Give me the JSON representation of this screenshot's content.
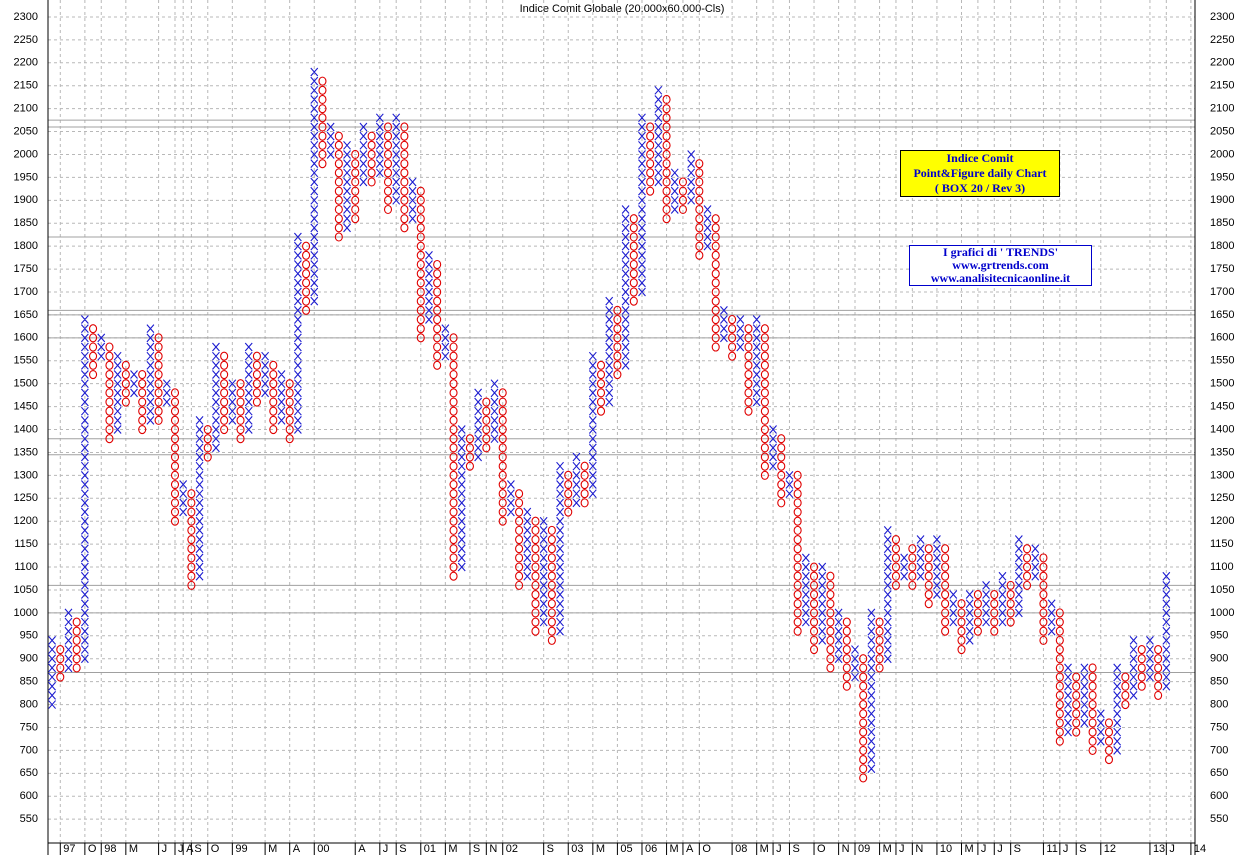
{
  "chart_data": {
    "type": "point-and-figure",
    "title": "Indice Comit Globale (20.000x60.000-Cls)",
    "box": 20,
    "x_color": "#1c1cd0",
    "o_color": "#e00000",
    "ylim": [
      498,
      2337
    ],
    "yticks": [
      550,
      600,
      650,
      700,
      750,
      800,
      850,
      900,
      950,
      1000,
      1050,
      1100,
      1150,
      1200,
      1250,
      1300,
      1350,
      1400,
      1450,
      1500,
      1550,
      1600,
      1650,
      1700,
      1750,
      1800,
      1850,
      1900,
      1950,
      2000,
      2050,
      2100,
      2150,
      2200,
      2250,
      2300
    ],
    "grid": true,
    "xlim": [
      -0.5,
      139.5
    ],
    "xticks": [
      {
        "value": 1,
        "label": "97"
      },
      {
        "value": 4,
        "label": "O"
      },
      {
        "value": 6,
        "label": "98"
      },
      {
        "value": 9,
        "label": "M"
      },
      {
        "value": 13,
        "label": "J"
      },
      {
        "value": 15,
        "label": "J"
      },
      {
        "value": 16,
        "label": "A"
      },
      {
        "value": 17,
        "label": "S"
      },
      {
        "value": 19,
        "label": "O"
      },
      {
        "value": 22,
        "label": "99"
      },
      {
        "value": 26,
        "label": "M"
      },
      {
        "value": 29,
        "label": "A"
      },
      {
        "value": 32,
        "label": "00"
      },
      {
        "value": 37,
        "label": "A"
      },
      {
        "value": 40,
        "label": "J"
      },
      {
        "value": 42,
        "label": "S"
      },
      {
        "value": 45,
        "label": "01"
      },
      {
        "value": 48,
        "label": "M"
      },
      {
        "value": 51,
        "label": "S"
      },
      {
        "value": 53,
        "label": "N"
      },
      {
        "value": 55,
        "label": "02"
      },
      {
        "value": 60,
        "label": "S"
      },
      {
        "value": 63,
        "label": "03"
      },
      {
        "value": 66,
        "label": "M"
      },
      {
        "value": 69,
        "label": "05"
      },
      {
        "value": 72,
        "label": "06"
      },
      {
        "value": 75,
        "label": "M"
      },
      {
        "value": 77,
        "label": "A"
      },
      {
        "value": 79,
        "label": "O"
      },
      {
        "value": 83,
        "label": "08"
      },
      {
        "value": 86,
        "label": "M"
      },
      {
        "value": 88,
        "label": "J"
      },
      {
        "value": 90,
        "label": "S"
      },
      {
        "value": 93,
        "label": "O"
      },
      {
        "value": 96,
        "label": "N"
      },
      {
        "value": 98,
        "label": "09"
      },
      {
        "value": 101,
        "label": "M"
      },
      {
        "value": 103,
        "label": "J"
      },
      {
        "value": 105,
        "label": "N"
      },
      {
        "value": 108,
        "label": "10"
      },
      {
        "value": 111,
        "label": "M"
      },
      {
        "value": 113,
        "label": "J"
      },
      {
        "value": 115,
        "label": "J"
      },
      {
        "value": 117,
        "label": "S"
      },
      {
        "value": 121,
        "label": "11"
      },
      {
        "value": 123,
        "label": "J"
      },
      {
        "value": 125,
        "label": "S"
      },
      {
        "value": 128,
        "label": "12"
      },
      {
        "value": 134,
        "label": "13"
      },
      {
        "value": 136,
        "label": "J"
      },
      {
        "value": 139,
        "label": "14"
      }
    ],
    "hlines": [
      2075,
      2060,
      1820,
      1660,
      1650,
      1600,
      1380,
      1345,
      1060,
      1000,
      870
    ],
    "columns": [
      [
        "X",
        800,
        940
      ],
      [
        "O",
        860,
        920
      ],
      [
        "X",
        880,
        1000
      ],
      [
        "O",
        880,
        980
      ],
      [
        "X",
        900,
        1640
      ],
      [
        "O",
        1520,
        1620
      ],
      [
        "X",
        1560,
        1600
      ],
      [
        "O",
        1380,
        1580
      ],
      [
        "X",
        1400,
        1560
      ],
      [
        "O",
        1460,
        1540
      ],
      [
        "X",
        1480,
        1520
      ],
      [
        "O",
        1400,
        1520
      ],
      [
        "X",
        1420,
        1620
      ],
      [
        "O",
        1420,
        1600
      ],
      [
        "X",
        1460,
        1500
      ],
      [
        "O",
        1200,
        1480
      ],
      [
        "X",
        1220,
        1280
      ],
      [
        "O",
        1060,
        1260
      ],
      [
        "X",
        1080,
        1420
      ],
      [
        "O",
        1340,
        1400
      ],
      [
        "X",
        1360,
        1580
      ],
      [
        "O",
        1400,
        1560
      ],
      [
        "X",
        1420,
        1500
      ],
      [
        "O",
        1380,
        1500
      ],
      [
        "X",
        1400,
        1580
      ],
      [
        "O",
        1460,
        1560
      ],
      [
        "X",
        1480,
        1560
      ],
      [
        "O",
        1400,
        1540
      ],
      [
        "X",
        1420,
        1520
      ],
      [
        "O",
        1380,
        1500
      ],
      [
        "X",
        1400,
        1820
      ],
      [
        "O",
        1660,
        1800
      ],
      [
        "X",
        1680,
        2180
      ],
      [
        "O",
        1980,
        2160
      ],
      [
        "X",
        2000,
        2060
      ],
      [
        "O",
        1820,
        2040
      ],
      [
        "X",
        1840,
        2020
      ],
      [
        "O",
        1860,
        2000
      ],
      [
        "X",
        1940,
        2060
      ],
      [
        "O",
        1940,
        2040
      ],
      [
        "X",
        1960,
        2080
      ],
      [
        "O",
        1880,
        2060
      ],
      [
        "X",
        1900,
        2080
      ],
      [
        "O",
        1840,
        2060
      ],
      [
        "X",
        1860,
        1940
      ],
      [
        "O",
        1600,
        1920
      ],
      [
        "X",
        1640,
        1780
      ],
      [
        "O",
        1540,
        1760
      ],
      [
        "X",
        1560,
        1620
      ],
      [
        "O",
        1080,
        1600
      ],
      [
        "X",
        1100,
        1400
      ],
      [
        "O",
        1320,
        1380
      ],
      [
        "X",
        1340,
        1480
      ],
      [
        "O",
        1360,
        1460
      ],
      [
        "X",
        1380,
        1500
      ],
      [
        "O",
        1200,
        1480
      ],
      [
        "X",
        1220,
        1280
      ],
      [
        "O",
        1060,
        1260
      ],
      [
        "X",
        1080,
        1220
      ],
      [
        "O",
        960,
        1200
      ],
      [
        "X",
        980,
        1200
      ],
      [
        "O",
        940,
        1180
      ],
      [
        "X",
        960,
        1320
      ],
      [
        "O",
        1220,
        1300
      ],
      [
        "X",
        1240,
        1340
      ],
      [
        "O",
        1240,
        1320
      ],
      [
        "X",
        1260,
        1560
      ],
      [
        "O",
        1440,
        1540
      ],
      [
        "X",
        1460,
        1680
      ],
      [
        "O",
        1520,
        1660
      ],
      [
        "X",
        1540,
        1880
      ],
      [
        "O",
        1680,
        1860
      ],
      [
        "X",
        1700,
        2080
      ],
      [
        "O",
        1920,
        2060
      ],
      [
        "X",
        1940,
        2140
      ],
      [
        "O",
        1860,
        2120
      ],
      [
        "X",
        1880,
        1960
      ],
      [
        "O",
        1880,
        1940
      ],
      [
        "X",
        1900,
        2000
      ],
      [
        "O",
        1780,
        1980
      ],
      [
        "X",
        1800,
        1880
      ],
      [
        "O",
        1580,
        1860
      ],
      [
        "X",
        1600,
        1660
      ],
      [
        "O",
        1560,
        1640
      ],
      [
        "X",
        1580,
        1640
      ],
      [
        "O",
        1440,
        1620
      ],
      [
        "X",
        1460,
        1640
      ],
      [
        "O",
        1300,
        1620
      ],
      [
        "X",
        1320,
        1400
      ],
      [
        "O",
        1240,
        1380
      ],
      [
        "X",
        1260,
        1300
      ],
      [
        "O",
        960,
        1300
      ],
      [
        "X",
        980,
        1120
      ],
      [
        "O",
        920,
        1100
      ],
      [
        "X",
        940,
        1100
      ],
      [
        "O",
        880,
        1080
      ],
      [
        "X",
        900,
        1000
      ],
      [
        "O",
        840,
        980
      ],
      [
        "X",
        860,
        920
      ],
      [
        "O",
        640,
        900
      ],
      [
        "X",
        660,
        1000
      ],
      [
        "O",
        880,
        980
      ],
      [
        "X",
        900,
        1180
      ],
      [
        "O",
        1060,
        1160
      ],
      [
        "X",
        1080,
        1120
      ],
      [
        "O",
        1060,
        1140
      ],
      [
        "X",
        1080,
        1160
      ],
      [
        "O",
        1020,
        1140
      ],
      [
        "X",
        1040,
        1160
      ],
      [
        "O",
        960,
        1140
      ],
      [
        "X",
        980,
        1040
      ],
      [
        "O",
        920,
        1020
      ],
      [
        "X",
        940,
        1040
      ],
      [
        "O",
        960,
        1040
      ],
      [
        "X",
        980,
        1060
      ],
      [
        "O",
        960,
        1040
      ],
      [
        "X",
        980,
        1080
      ],
      [
        "O",
        980,
        1060
      ],
      [
        "X",
        1000,
        1160
      ],
      [
        "O",
        1060,
        1140
      ],
      [
        "X",
        1080,
        1140
      ],
      [
        "O",
        940,
        1120
      ],
      [
        "X",
        960,
        1020
      ],
      [
        "O",
        720,
        1000
      ],
      [
        "X",
        740,
        880
      ],
      [
        "O",
        740,
        860
      ],
      [
        "X",
        760,
        880
      ],
      [
        "O",
        700,
        880
      ],
      [
        "X",
        720,
        780
      ],
      [
        "O",
        680,
        760
      ],
      [
        "X",
        700,
        880
      ],
      [
        "O",
        800,
        860
      ],
      [
        "X",
        820,
        940
      ],
      [
        "O",
        840,
        920
      ],
      [
        "X",
        860,
        940
      ],
      [
        "O",
        820,
        920
      ],
      [
        "X",
        840,
        1080
      ]
    ],
    "annotations": [
      {
        "lines": [
          "Indice Comit",
          "Point&Figure daily Chart",
          "( BOX 20 / Rev 3)"
        ],
        "background": "#ffff00",
        "color": "#0000cc"
      },
      {
        "lines": [
          "I grafici di ' TRENDS'",
          "www.grtrends.com",
          "www.analisitecnicaonline.it"
        ],
        "background": "#ffffff",
        "color": "#0000cc"
      }
    ]
  }
}
